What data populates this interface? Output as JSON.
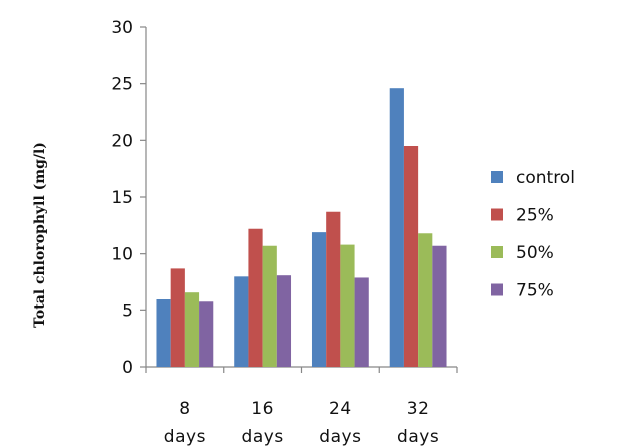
{
  "chart_data": {
    "type": "bar",
    "ylabel": "Total chlorophyll (mg/l)",
    "xlabel": "",
    "categories": [
      [
        "8",
        "days"
      ],
      [
        "16",
        "days"
      ],
      [
        "24",
        "days"
      ],
      [
        "32",
        "days"
      ]
    ],
    "ylim": [
      0,
      30
    ],
    "yticks": [
      0,
      5,
      10,
      15,
      20,
      25,
      30
    ],
    "grid": false,
    "legend_position": "right",
    "series": [
      {
        "name": "control",
        "color": "#4f81bd",
        "values": [
          6.0,
          8.0,
          11.9,
          24.6
        ]
      },
      {
        "name": "25%",
        "color": "#c0504d",
        "values": [
          8.7,
          12.2,
          13.7,
          19.5
        ]
      },
      {
        "name": "50%",
        "color": "#9bbb59",
        "values": [
          6.6,
          10.7,
          10.8,
          11.8
        ]
      },
      {
        "name": "75%",
        "color": "#8064a2",
        "values": [
          5.8,
          8.1,
          7.9,
          10.7
        ]
      }
    ]
  }
}
